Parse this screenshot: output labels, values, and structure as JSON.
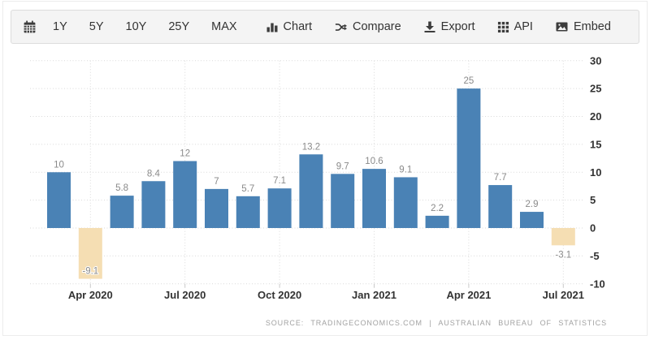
{
  "toolbar": {
    "calendar": {
      "icon": "calendar-icon"
    },
    "ranges": [
      {
        "label": "1Y"
      },
      {
        "label": "5Y"
      },
      {
        "label": "10Y"
      },
      {
        "label": "25Y"
      },
      {
        "label": "MAX"
      }
    ],
    "actions": [
      {
        "label": "Chart",
        "icon": "bar-chart-icon"
      },
      {
        "label": "Compare",
        "icon": "shuffle-icon"
      },
      {
        "label": "Export",
        "icon": "download-icon"
      },
      {
        "label": "API",
        "icon": "grid-icon"
      },
      {
        "label": "Embed",
        "icon": "image-icon"
      }
    ]
  },
  "chart_data": {
    "type": "bar",
    "title": "",
    "values": [
      10,
      -9.1,
      5.8,
      8.4,
      12,
      7,
      5.7,
      7.1,
      13.2,
      9.7,
      10.6,
      9.1,
      2.2,
      25,
      7.7,
      2.9,
      -3.1
    ],
    "value_labels": [
      "10",
      "-9.1",
      "5.8",
      "8.4",
      "12",
      "7",
      "5.7",
      "7.1",
      "13.2",
      "9.7",
      "10.6",
      "9.1",
      "2.2",
      "25",
      "7.7",
      "2.9",
      "-3.1"
    ],
    "x_ticks": [
      {
        "index": 1,
        "label": "Apr 2020"
      },
      {
        "index": 4,
        "label": "Jul 2020"
      },
      {
        "index": 7,
        "label": "Oct 2020"
      },
      {
        "index": 10,
        "label": "Jan 2021"
      },
      {
        "index": 13,
        "label": "Apr 2021"
      },
      {
        "index": 16,
        "label": "Jul 2021"
      }
    ],
    "y_ticks": [
      30,
      25,
      20,
      15,
      10,
      5,
      0,
      -5,
      -10
    ],
    "ylim": [
      -10,
      30
    ],
    "grid": true,
    "legend": false,
    "yaxis_side": "right",
    "colors": {
      "positive_bar": "#4a82b5",
      "negative_bar": "#f5deb3",
      "gridline": "#d9d9d9",
      "axis_text": "#333333",
      "value_label": "#8a8a8a"
    }
  },
  "source": {
    "text": "SOURCE: TRADINGECONOMICS.COM | AUSTRALIAN BUREAU OF STATISTICS"
  }
}
